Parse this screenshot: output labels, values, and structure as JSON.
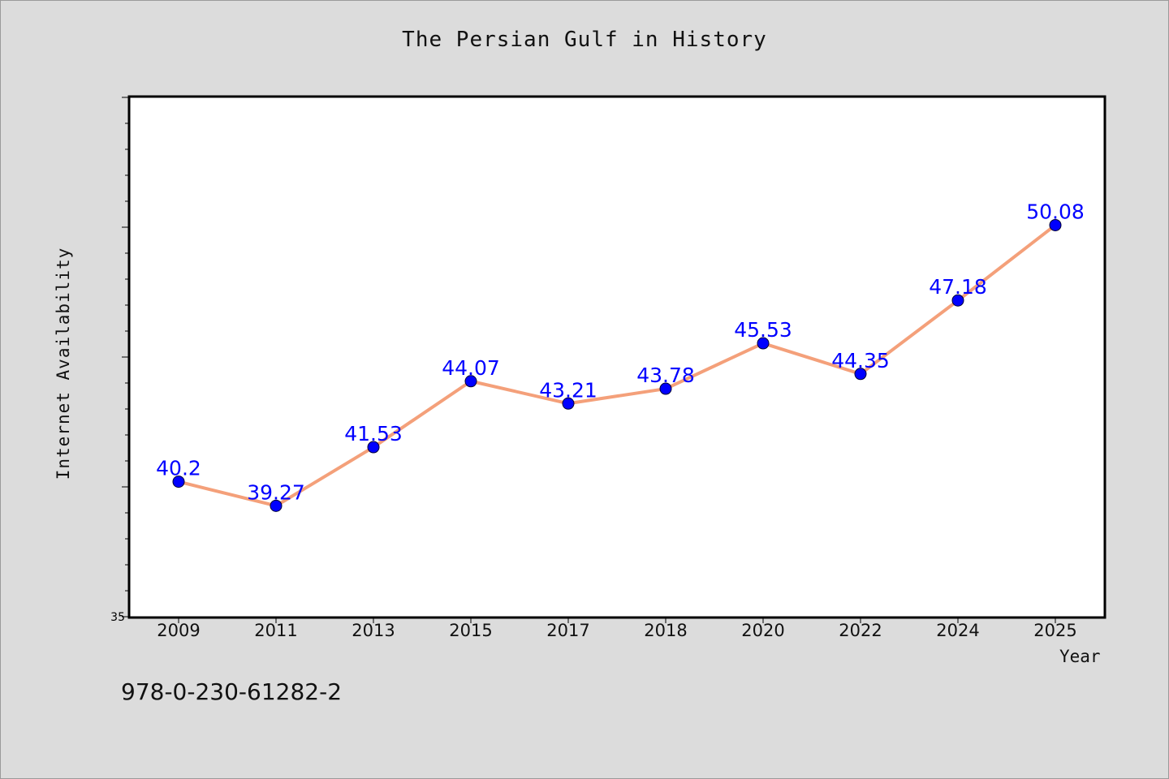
{
  "chart_data": {
    "type": "line",
    "title": "The Persian Gulf in History",
    "xlabel": "Year",
    "ylabel": "Internet Availability",
    "categories": [
      "2009",
      "2011",
      "2013",
      "2015",
      "2017",
      "2018",
      "2020",
      "2022",
      "2024",
      "2025"
    ],
    "series": [
      {
        "values": [
          40.2,
          39.27,
          41.53,
          44.07,
          43.21,
          43.78,
          45.53,
          44.35,
          47.18,
          50.08
        ],
        "labels": [
          "40.2",
          "39.27",
          "41.53",
          "44.07",
          "43.21",
          "43.78",
          "45.53",
          "44.35",
          "47.18",
          "50.08"
        ]
      }
    ],
    "y_tick_labels": [
      "35"
    ],
    "ylim": [
      35,
      55
    ],
    "grid": false,
    "line_color": "#f4a07a",
    "marker_color": "#0000ff",
    "label_color": "#0000ff"
  },
  "footer": {
    "isbn": "978-0-230-61282-2"
  }
}
